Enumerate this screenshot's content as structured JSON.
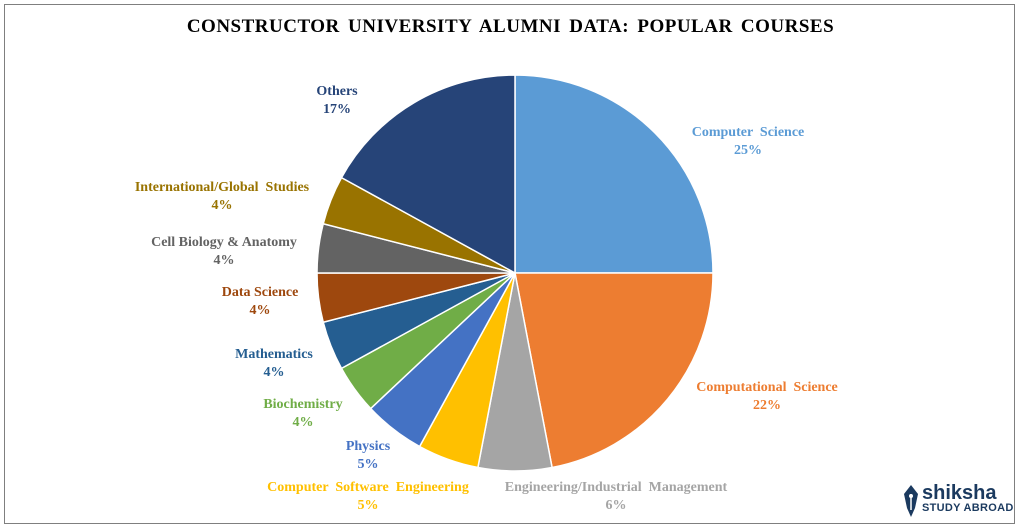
{
  "chart_data": {
    "type": "pie",
    "title": "CONSTRUCTOR  UNIVERSITY ALUMNI DATA:  POPULAR COURSES",
    "slices": [
      {
        "label": "Computer  Science",
        "value": 25,
        "pct_label": "25%",
        "color": "#5b9bd5",
        "label_color": "#5b9bd5"
      },
      {
        "label": "Computational  Science",
        "value": 22,
        "pct_label": "22%",
        "color": "#ed7d31",
        "label_color": "#ed7d31"
      },
      {
        "label": "Engineering/Industrial  Management",
        "value": 6,
        "pct_label": "6%",
        "color": "#a5a5a5",
        "label_color": "#a5a5a5"
      },
      {
        "label": "Computer  Software  Engineering",
        "value": 5,
        "pct_label": "5%",
        "color": "#ffc000",
        "label_color": "#ffc000"
      },
      {
        "label": "Physics",
        "value": 5,
        "pct_label": "5%",
        "color": "#4472c4",
        "label_color": "#4472c4"
      },
      {
        "label": "Biochemistry",
        "value": 4,
        "pct_label": "4%",
        "color": "#70ad47",
        "label_color": "#70ad47"
      },
      {
        "label": "Mathematics",
        "value": 4,
        "pct_label": "4%",
        "color": "#255e91",
        "label_color": "#255e91"
      },
      {
        "label": "Data Science",
        "value": 4,
        "pct_label": "4%",
        "color": "#9e480e",
        "label_color": "#9e480e"
      },
      {
        "label": "Cell Biology & Anatomy",
        "value": 4,
        "pct_label": "4%",
        "color": "#636363",
        "label_color": "#636363"
      },
      {
        "label": "International/Global  Studies",
        "value": 4,
        "pct_label": "4%",
        "color": "#997300",
        "label_color": "#997300"
      },
      {
        "label": "Others",
        "value": 17,
        "pct_label": "17%",
        "color": "#264478",
        "label_color": "#264478"
      }
    ]
  },
  "logo": {
    "name": "shiksha",
    "tagline": "STUDY ABROAD",
    "icon": "pen-nib-icon",
    "color": "#1b3a5f"
  }
}
